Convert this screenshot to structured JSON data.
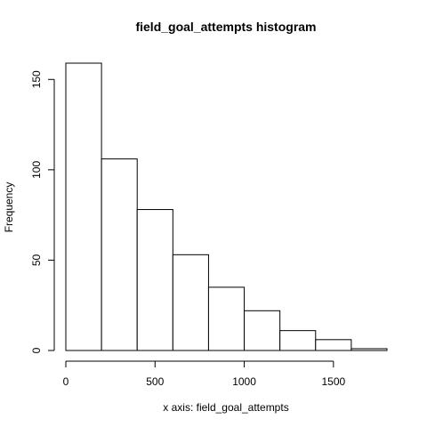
{
  "chart_data": {
    "type": "bar",
    "subtype": "histogram",
    "title": "field_goal_attempts histogram",
    "xlabel": "x axis: field_goal_attempts",
    "ylabel": "Frequency",
    "bins": [
      {
        "start": 0,
        "end": 200,
        "count": 159
      },
      {
        "start": 200,
        "end": 400,
        "count": 106
      },
      {
        "start": 400,
        "end": 600,
        "count": 78
      },
      {
        "start": 600,
        "end": 800,
        "count": 53
      },
      {
        "start": 800,
        "end": 1000,
        "count": 35
      },
      {
        "start": 1000,
        "end": 1200,
        "count": 22
      },
      {
        "start": 1200,
        "end": 1400,
        "count": 11
      },
      {
        "start": 1400,
        "end": 1600,
        "count": 6
      },
      {
        "start": 1600,
        "end": 1800,
        "count": 1
      }
    ],
    "xlim": [
      0,
      1800
    ],
    "ylim": [
      0,
      159
    ],
    "x_ticks": [
      0,
      500,
      1000,
      1500
    ],
    "x_tick_labels": [
      "0",
      "500",
      "1000",
      "1500"
    ],
    "y_ticks": [
      0,
      50,
      100,
      150
    ],
    "y_tick_labels": [
      "0",
      "50",
      "100",
      "150"
    ],
    "grid": false,
    "bar_fill": "#ffffff",
    "bar_stroke": "#000000"
  }
}
